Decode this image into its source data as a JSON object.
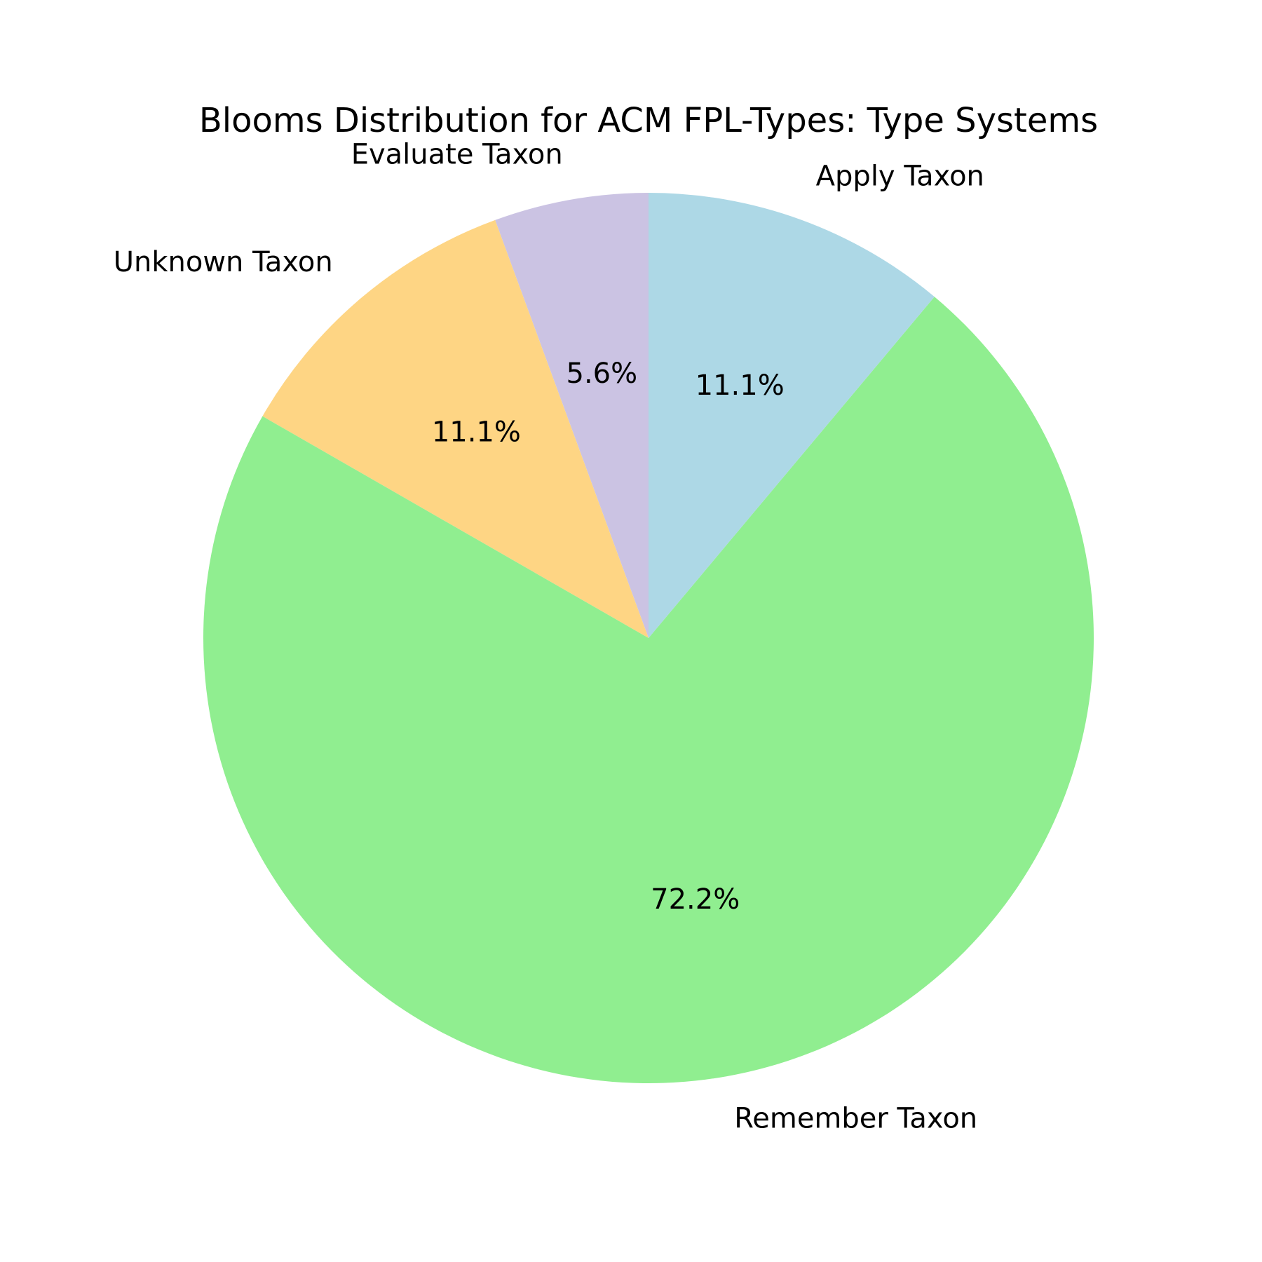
{
  "chart_data": {
    "type": "pie",
    "title": "Blooms Distribution for ACM FPL-Types: Type Systems",
    "start_angle_deg": 90,
    "direction": "counterclockwise",
    "slices": [
      {
        "label": "Evaluate Taxon",
        "value": 5.6,
        "percent_label": "5.6%",
        "color": "#cbc3e3"
      },
      {
        "label": "Unknown Taxon",
        "value": 11.1,
        "percent_label": "11.1%",
        "color": "#fed584"
      },
      {
        "label": "Remember Taxon",
        "value": 72.2,
        "percent_label": "72.2%",
        "color": "#90ee90"
      },
      {
        "label": "Apply Taxon",
        "value": 11.1,
        "percent_label": "11.1%",
        "color": "#add8e6"
      }
    ]
  }
}
